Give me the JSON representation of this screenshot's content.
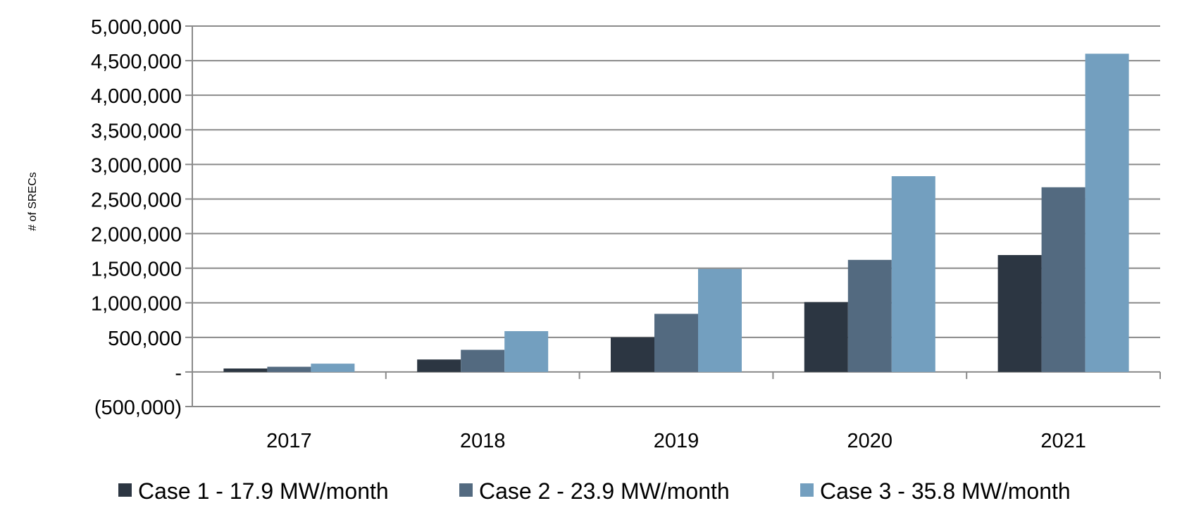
{
  "chart_data": {
    "type": "bar",
    "title": "",
    "xlabel": "",
    "ylabel": "# of SRECs",
    "categories": [
      "2017",
      "2018",
      "2019",
      "2020",
      "2021"
    ],
    "series": [
      {
        "name": "Case 1 - 17.9 MW/month",
        "color": "#2c3642",
        "values": [
          50000,
          180000,
          500000,
          1010000,
          1690000
        ]
      },
      {
        "name": "Case 2 - 23.9 MW/month",
        "color": "#536a80",
        "values": [
          75000,
          320000,
          840000,
          1620000,
          2670000
        ]
      },
      {
        "name": "Case 3 - 35.8 MW/month",
        "color": "#739fbf",
        "values": [
          120000,
          590000,
          1490000,
          2830000,
          4600000
        ]
      }
    ],
    "ylim": [
      -500000,
      5000000
    ],
    "yticks": [
      5000000,
      4500000,
      4000000,
      3500000,
      3000000,
      2500000,
      2000000,
      1500000,
      1000000,
      500000,
      0,
      -500000
    ],
    "ytick_labels": [
      "5,000,000",
      "4,500,000",
      "4,000,000",
      "3,500,000",
      "3,000,000",
      "2,500,000",
      "2,000,000",
      "1,500,000",
      "1,000,000",
      "500,000",
      "-",
      "(500,000)"
    ],
    "grid": true,
    "legend": "bottom",
    "gridline_color": "#8a8a8a"
  }
}
